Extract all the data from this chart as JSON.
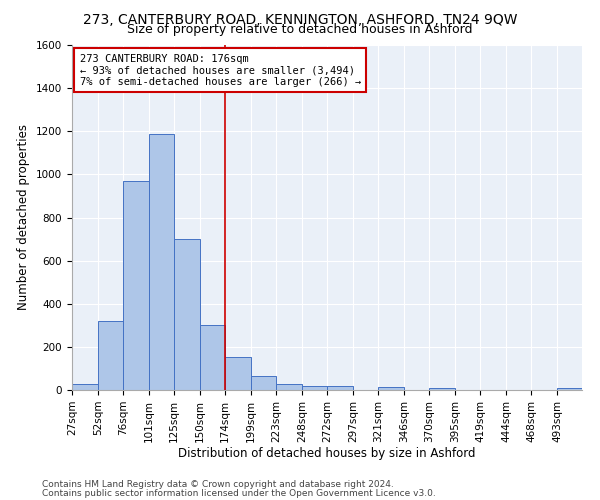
{
  "title1": "273, CANTERBURY ROAD, KENNINGTON, ASHFORD, TN24 9QW",
  "title2": "Size of property relative to detached houses in Ashford",
  "xlabel": "Distribution of detached houses by size in Ashford",
  "ylabel": "Number of detached properties",
  "footnote1": "Contains HM Land Registry data © Crown copyright and database right 2024.",
  "footnote2": "Contains public sector information licensed under the Open Government Licence v3.0.",
  "annotation_line1": "273 CANTERBURY ROAD: 176sqm",
  "annotation_line2": "← 93% of detached houses are smaller (3,494)",
  "annotation_line3": "7% of semi-detached houses are larger (266) →",
  "bin_edges": [
    27,
    52,
    76,
    101,
    125,
    150,
    174,
    199,
    223,
    248,
    272,
    297,
    321,
    346,
    370,
    395,
    419,
    444,
    468,
    493,
    517
  ],
  "bar_heights": [
    30,
    320,
    970,
    1185,
    700,
    300,
    155,
    65,
    30,
    20,
    20,
    0,
    15,
    0,
    10,
    0,
    0,
    0,
    0,
    10
  ],
  "bar_color": "#aec6e8",
  "bar_edge_color": "#4472c4",
  "vline_x": 174,
  "vline_color": "#cc0000",
  "annotation_box_color": "#cc0000",
  "ylim": [
    0,
    1600
  ],
  "yticks": [
    0,
    200,
    400,
    600,
    800,
    1000,
    1200,
    1400,
    1600
  ],
  "background_color": "#eaf0f8",
  "grid_color": "#ffffff",
  "fig_background": "#ffffff",
  "title1_fontsize": 10,
  "title2_fontsize": 9,
  "xlabel_fontsize": 8.5,
  "ylabel_fontsize": 8.5,
  "tick_fontsize": 7.5,
  "annotation_fontsize": 7.5,
  "footnote_fontsize": 6.5
}
